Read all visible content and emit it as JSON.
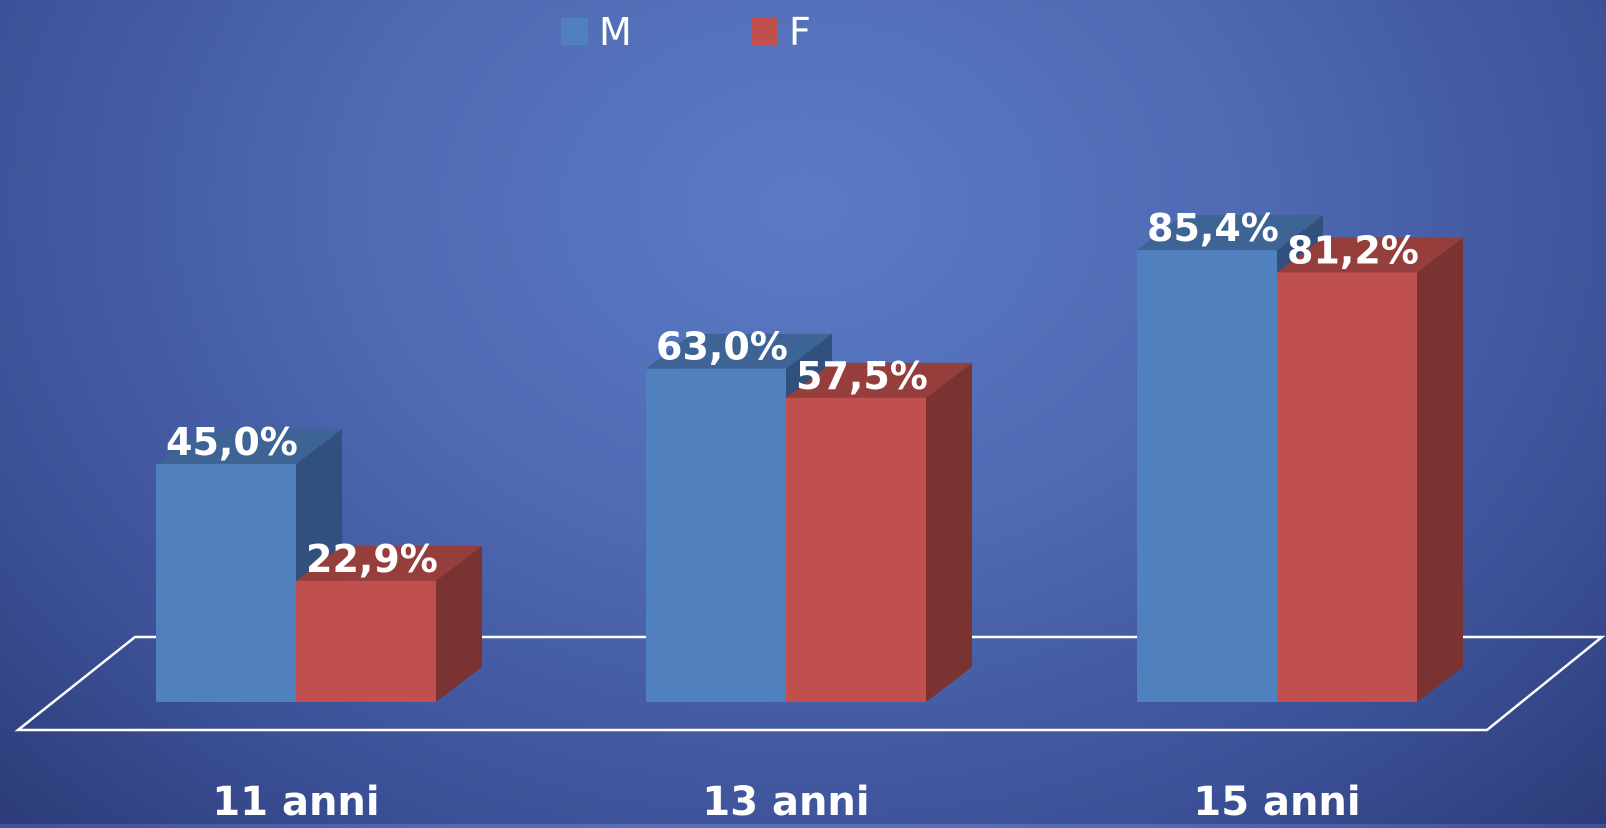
{
  "chart_data": {
    "type": "bar",
    "title": "",
    "xlabel": "",
    "ylabel": "",
    "categories": [
      "11 anni",
      "13 anni",
      "15 anni"
    ],
    "series": [
      {
        "name": "M",
        "values": [
          45.0,
          63.0,
          85.4
        ],
        "labels": [
          "45,0%",
          "63,0%",
          "85,4%"
        ]
      },
      {
        "name": "F",
        "values": [
          22.9,
          57.5,
          81.2
        ],
        "labels": [
          "22,9%",
          "57,5%",
          "81,2%"
        ]
      }
    ],
    "ylim": [
      0,
      100
    ],
    "legend": "top-center",
    "style": "3d-clustered-columns",
    "grid": false
  },
  "colors": {
    "M": {
      "front": "#5080be",
      "top": "#3d6494",
      "side": "#32507e"
    },
    "F": {
      "front": "#c0504d",
      "top": "#963e3b",
      "side": "#7a3330"
    },
    "text": "#ffffff",
    "floor": "#ffffff"
  }
}
